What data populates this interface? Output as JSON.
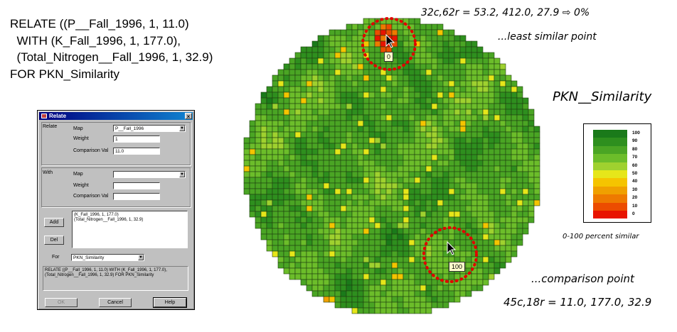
{
  "command": {
    "lines": [
      "RELATE ((P__Fall_1996, 1, 11.0)",
      "  WITH (K_Fall_1996, 1, 177.0),",
      "  (Total_Nitrogen__Fall_1996, 1, 32.9)",
      "FOR PKN_Similarity"
    ]
  },
  "dialog": {
    "title": "Relate",
    "relate_label": "Relate",
    "with_label": "With",
    "map_label": "Map",
    "weight_label": "Weight",
    "comparison_label": "Comparison Val",
    "relate_map": "P__Fall_1996",
    "relate_weight": "1",
    "relate_comparison": "11.0",
    "with_map": "",
    "with_weight": "",
    "with_comparison": "",
    "with_list": [
      "(K_Fall_1996, 1, 177.0)",
      "(Total_Nitrogen__Fall_1996, 1, 32.9)"
    ],
    "add_label": "Add",
    "del_label": "Del",
    "for_label": "For",
    "for_value": "PKN_Similarity",
    "expression": "RELATE ((P__Fall_1996, 1, 11.0) WITH (K_Fall_1996, 1, 177.0), (Total_Nitrogen__Fall_1996, 1, 32.9) FOR PKN_Similarity",
    "ok_label": "OK",
    "cancel_label": "Cancel",
    "help_label": "Help"
  },
  "map": {
    "least_readout": "32c,62r = 53.2, 412.0, 27.9 ⇨ 0%",
    "least_caption": "...least similar point",
    "least_tag": "0",
    "comparison_tag": "100",
    "comparison_caption": "...comparison point",
    "comparison_readout": "45c,18r = 11.0, 177.0, 32.9"
  },
  "legend": {
    "title": "PKN__Similarity",
    "values": [
      "100",
      "90",
      "80",
      "70",
      "60",
      "50",
      "40",
      "30",
      "20",
      "10",
      "0"
    ],
    "colors": [
      "#1a7a1a",
      "#2e8f1e",
      "#4aa524",
      "#6cbd2a",
      "#9fd12f",
      "#e6e61a",
      "#f5c400",
      "#f0a000",
      "#ee7a00",
      "#ec4c00",
      "#e81400"
    ],
    "caption": "0-100 percent similar"
  }
}
